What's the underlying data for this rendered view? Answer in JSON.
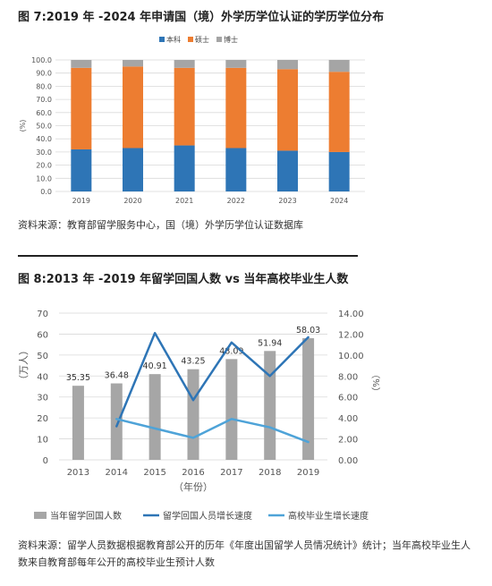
{
  "figure1": {
    "title": "图 7:2019 年 -2024 年申请国（境）外学历学位认证的学历学位分布",
    "source": "资料来源：教育部留学服务中心，国（境）外学历学位认证数据库"
  },
  "figure2": {
    "title": "图 8:2013 年 -2019 年留学回国人数 vs 当年高校毕业生人数",
    "source": "资料来源：留学人员数据根据教育部公开的历年《年度出国留学人员情况统计》统计；当年高校毕业生人数来自教育部每年公开的高校毕业生预计人数"
  },
  "chart_data": [
    {
      "type": "bar",
      "stacked": true,
      "categories": [
        "2019",
        "2020",
        "2021",
        "2022",
        "2023",
        "2024"
      ],
      "series": [
        {
          "name": "本科",
          "color": "#2e75b6",
          "values": [
            32,
            33,
            35,
            33,
            31,
            30
          ]
        },
        {
          "name": "硕士",
          "color": "#ed7d31",
          "values": [
            62,
            62,
            59,
            61,
            62,
            61
          ]
        },
        {
          "name": "博士",
          "color": "#a5a5a5",
          "values": [
            6,
            5,
            6,
            6,
            7,
            9
          ]
        }
      ],
      "ylabel": "(%)",
      "ylim": [
        0,
        100
      ],
      "yticks": [
        "0.0",
        "10.0",
        "20.0",
        "30.0",
        "40.0",
        "50.0",
        "60.0",
        "70.0",
        "80.0",
        "90.0",
        "100.0"
      ],
      "grid": true,
      "legend": "top-center"
    },
    {
      "type": "bar+line",
      "categories": [
        "2013",
        "2014",
        "2015",
        "2016",
        "2017",
        "2018",
        "2019"
      ],
      "bars": {
        "name": "当年留学回国人数",
        "color": "#a6a6a6",
        "values": [
          35.35,
          36.48,
          40.91,
          43.25,
          48.09,
          51.94,
          58.03
        ],
        "labels": [
          "35.35",
          "36.48",
          "40.91",
          "43.25",
          "48.09",
          "51.94",
          "58.03"
        ]
      },
      "lines": [
        {
          "name": "留学回国人员增长速度",
          "color": "#2e75b6",
          "values": [
            null,
            3.2,
            12.1,
            5.7,
            11.2,
            8.0,
            11.7
          ]
        },
        {
          "name": "高校毕业生增长速度",
          "color": "#4ea3d8",
          "values": [
            null,
            3.9,
            3.0,
            2.1,
            3.9,
            3.1,
            1.7
          ]
        }
      ],
      "ylabel_left": "（万人）",
      "ylabel_right": "（%）",
      "xlabel": "（年份）",
      "ylim_left": [
        0,
        70
      ],
      "ylim_right": [
        0,
        14
      ],
      "yticks_left": [
        "0",
        "10",
        "20",
        "30",
        "40",
        "50",
        "60",
        "70"
      ],
      "yticks_right": [
        "0.00",
        "2.00",
        "4.00",
        "6.00",
        "8.00",
        "10.00",
        "12.00",
        "14.00"
      ],
      "grid": true,
      "legend": "bottom"
    }
  ]
}
